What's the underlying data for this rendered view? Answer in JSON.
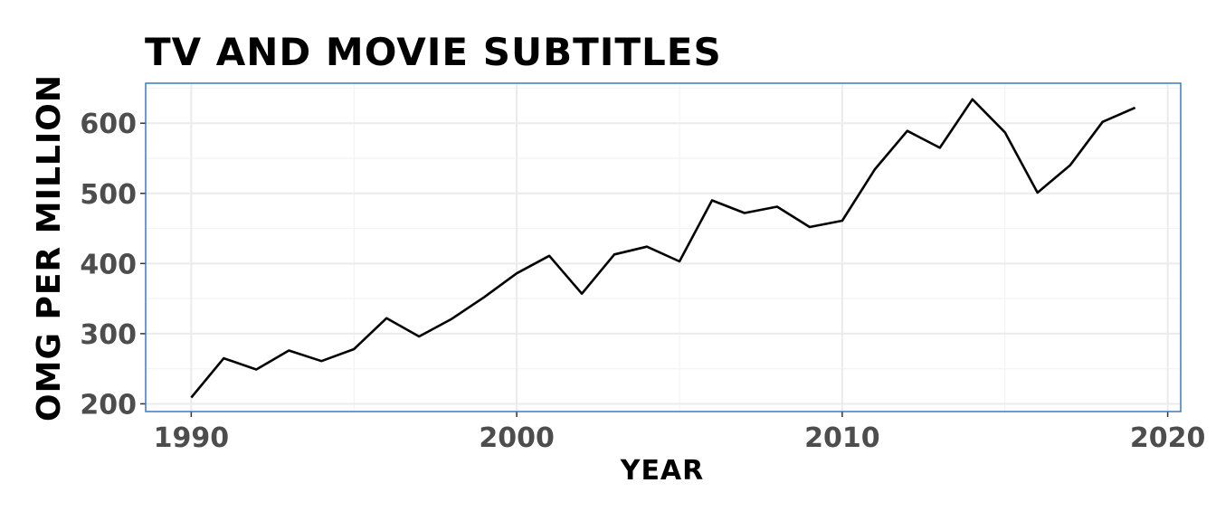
{
  "chart_data": {
    "type": "line",
    "title": "TV AND MOVIE SUBTITLES",
    "xlabel": "YEAR",
    "ylabel": "OMG PER MILLION",
    "xlim": [
      1988.6,
      2020.4
    ],
    "ylim": [
      189,
      657
    ],
    "x_ticks": [
      1990,
      2000,
      2010,
      2020
    ],
    "y_ticks": [
      200,
      300,
      400,
      500,
      600
    ],
    "grid": true,
    "x": [
      1990,
      1991,
      1992,
      1993,
      1994,
      1995,
      1996,
      1997,
      1998,
      1999,
      2000,
      2001,
      2002,
      2003,
      2004,
      2005,
      2006,
      2007,
      2008,
      2009,
      2010,
      2011,
      2012,
      2013,
      2014,
      2015,
      2016,
      2017,
      2018,
      2019
    ],
    "y": [
      209,
      265,
      249,
      276,
      261,
      278,
      322,
      296,
      321,
      352,
      386,
      411,
      357,
      413,
      424,
      403,
      490,
      472,
      481,
      452,
      461,
      534,
      589,
      565,
      634,
      587,
      501,
      540,
      602,
      622
    ],
    "line_color": "#000000"
  }
}
